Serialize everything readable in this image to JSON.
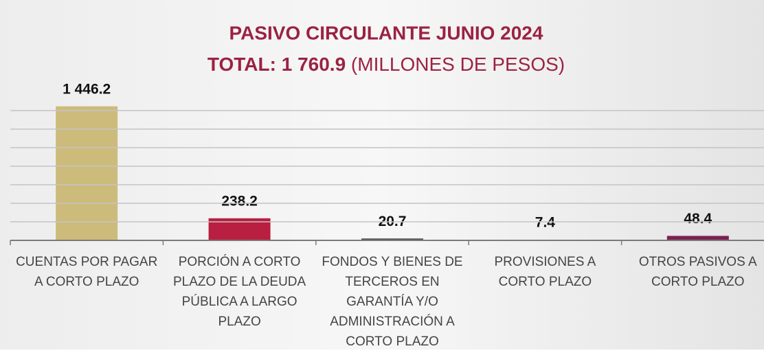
{
  "chart_data": {
    "type": "bar",
    "title": "PASIVO CIRCULANTE JUNIO 2024",
    "subtitle": [
      "TOTAL:  1 760.9",
      "(MILLONES DE PESOS)"
    ],
    "categories": [
      [
        "CUENTAS POR PAGAR",
        "A CORTO PLAZO"
      ],
      [
        "PORCIÓN A CORTO",
        "PLAZO DE LA DEUDA",
        "PÚBLICA A LARGO",
        "PLAZO"
      ],
      [
        "FONDOS Y BIENES DE",
        "TERCEROS EN",
        "GARANTÍA Y/O",
        "ADMINISTRACIÓN A",
        "CORTO PLAZO"
      ],
      [
        "PROVISIONES A",
        "CORTO PLAZO"
      ],
      [
        "OTROS PASIVOS A",
        "CORTO PLAZO"
      ]
    ],
    "values": [
      1446.2,
      238.2,
      20.7,
      7.4,
      48.4
    ],
    "value_labels": [
      "1 446.2",
      "238.2",
      "20.7",
      "7.4",
      "48.4"
    ],
    "colors": [
      "#cdbb7c",
      "#b81f40",
      "#555555",
      "#8a8a8a",
      "#7c2150"
    ],
    "ylim": [
      0,
      1600
    ],
    "yticks": [
      0,
      200,
      400,
      600,
      800,
      1000,
      1200,
      1400
    ],
    "grid": true
  }
}
